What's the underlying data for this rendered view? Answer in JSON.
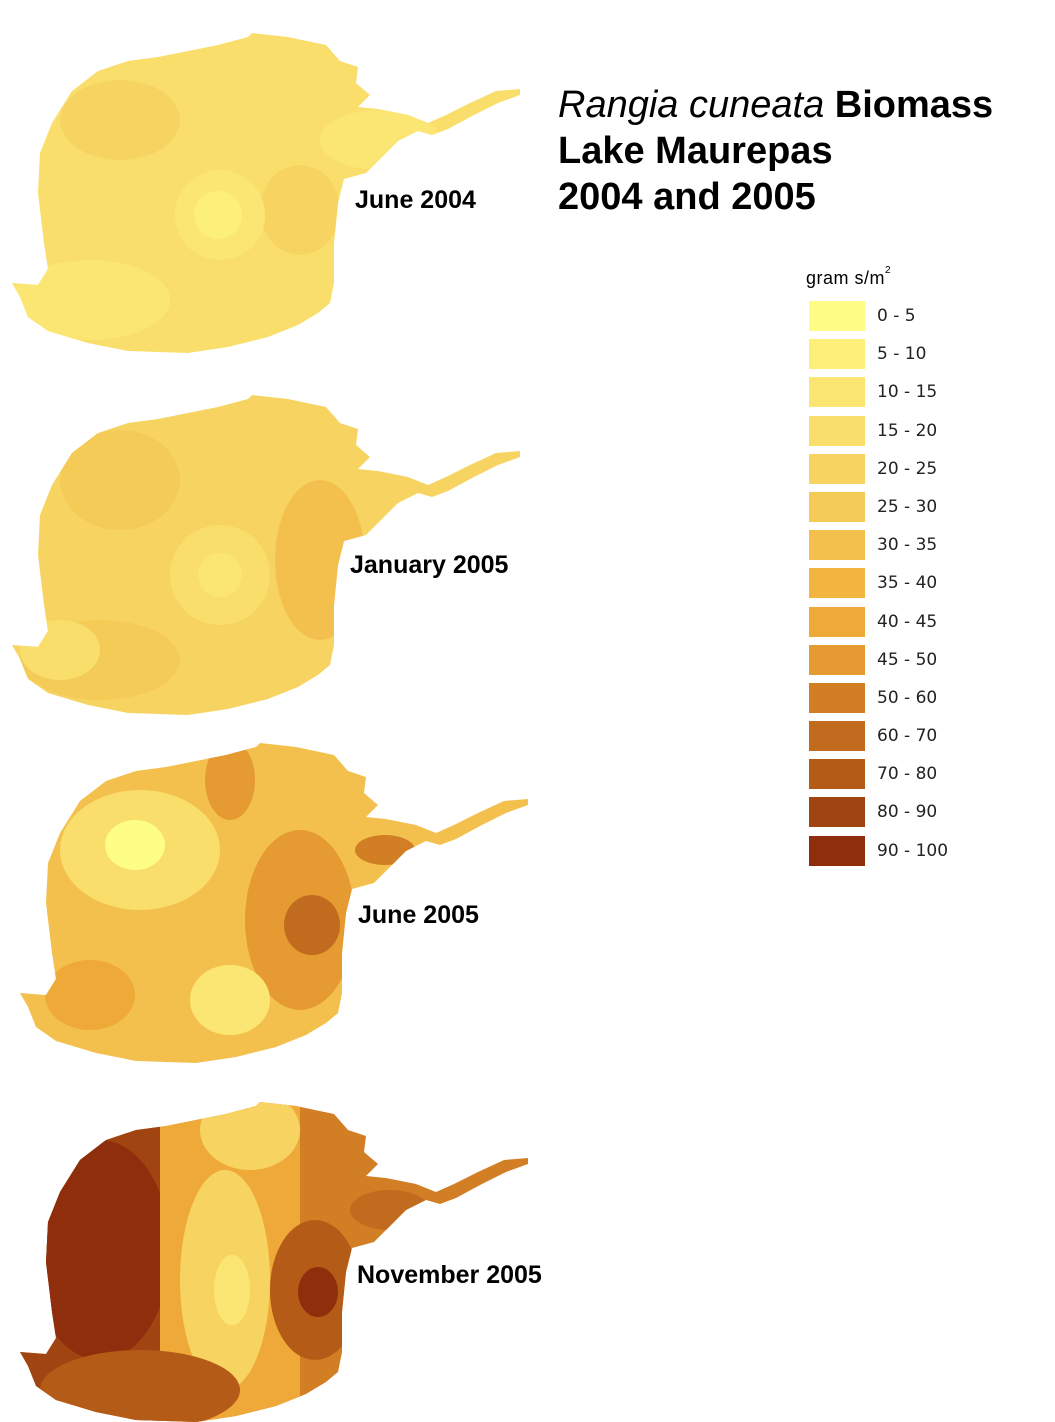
{
  "title": {
    "species": "Rangia cuneata",
    "line1_rest": "Biomass",
    "line2": "Lake Maurepas",
    "line3": "2004 and 2005"
  },
  "maps": [
    {
      "label": "June 2004"
    },
    {
      "label": "January 2005"
    },
    {
      "label": "June 2005"
    },
    {
      "label": "November 2005"
    }
  ],
  "legend": {
    "unit": "gram s/m",
    "unit_sup": "2",
    "classes": [
      {
        "range": "0 - 5",
        "color": "#fefe87"
      },
      {
        "range": "5 - 10",
        "color": "#fdf07a"
      },
      {
        "range": "10 - 15",
        "color": "#fbe674"
      },
      {
        "range": "15 - 20",
        "color": "#f9de6c"
      },
      {
        "range": "20 - 25",
        "color": "#f7d462"
      },
      {
        "range": "25 - 30",
        "color": "#f5cb58"
      },
      {
        "range": "30 - 35",
        "color": "#f3c04e"
      },
      {
        "range": "35 - 40",
        "color": "#f2b540"
      },
      {
        "range": "40 - 45",
        "color": "#eea938"
      },
      {
        "range": "45 - 50",
        "color": "#e59a32"
      },
      {
        "range": "50 - 60",
        "color": "#d17e24"
      },
      {
        "range": "60 - 70",
        "color": "#c06b1e"
      },
      {
        "range": "70 - 80",
        "color": "#b55b18"
      },
      {
        "range": "80 - 90",
        "color": "#a04412"
      },
      {
        "range": "90 - 100",
        "color": "#8e2e0c"
      }
    ]
  }
}
